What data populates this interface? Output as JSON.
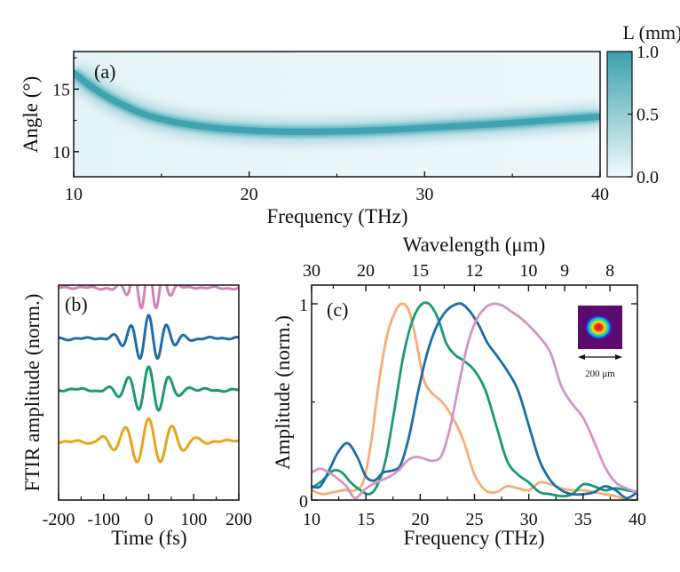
{
  "chart_data": [
    {
      "panel": "(a)",
      "type": "heatmap",
      "xlabel": "Frequency (THz)",
      "ylabel": "Angle (°)",
      "xlim": [
        10,
        40
      ],
      "ylim": [
        8,
        18
      ],
      "xticks": [
        "10",
        "20",
        "30",
        "40"
      ],
      "yticks": [
        "10",
        "15"
      ],
      "yticks_values": [
        10,
        15
      ],
      "xticks_values": [
        10,
        20,
        30,
        40
      ],
      "colorbar": {
        "label": "L (mm)",
        "ticks": [
          "0.0",
          "0.5",
          "1.0"
        ],
        "range": [
          0,
          1
        ],
        "color_low": "#f2fafb",
        "color_high": "#3aa0ad"
      },
      "ridge": {
        "x": [
          10,
          11,
          12,
          13,
          14,
          15,
          16,
          18,
          20,
          22,
          24,
          26,
          28,
          30,
          32,
          34,
          36,
          38,
          40
        ],
        "y": [
          16.3,
          15.2,
          14.3,
          13.6,
          13.0,
          12.6,
          12.3,
          11.9,
          11.7,
          11.6,
          11.6,
          11.65,
          11.75,
          11.9,
          12.05,
          12.2,
          12.4,
          12.6,
          12.8
        ]
      }
    },
    {
      "panel": "(b)",
      "type": "line",
      "xlabel": "Time (fs)",
      "ylabel": "FTIR amplitude (norm.)",
      "xlim": [
        -200,
        200
      ],
      "xticks": [
        "-200",
        "-100",
        "0",
        "100",
        "200"
      ],
      "xticks_values": [
        -200,
        -100,
        0,
        100,
        200
      ],
      "series": [
        {
          "name": "pink",
          "color": "#d183b8",
          "offset": 3,
          "center_freq": 30,
          "width": 32,
          "amp": 0.42
        },
        {
          "name": "blue",
          "color": "#1d6fa5",
          "offset": 2,
          "center_freq": 25,
          "width": 38,
          "amp": 0.42
        },
        {
          "name": "green",
          "color": "#1a9a72",
          "offset": 1,
          "center_freq": 22,
          "width": 42,
          "amp": 0.42
        },
        {
          "name": "yellow",
          "color": "#e6a618",
          "offset": 0,
          "center_freq": 19,
          "width": 55,
          "amp": 0.42
        }
      ]
    },
    {
      "panel": "(c)",
      "type": "line",
      "xlabel": "Frequency (THz)",
      "ylabel": "Amplitude (norm.)",
      "top_xlabel": "Wavelength (μm)",
      "xlim": [
        10,
        40
      ],
      "ylim": [
        0,
        1.03
      ],
      "xticks": [
        "10",
        "15",
        "20",
        "25",
        "30",
        "35",
        "40"
      ],
      "xticks_values": [
        10,
        15,
        20,
        25,
        30,
        35,
        40
      ],
      "yticks": [
        "0",
        "1"
      ],
      "yticks_values": [
        0,
        1
      ],
      "top_xticks": [
        "30",
        "20",
        "15",
        "12",
        "10",
        "9",
        "8"
      ],
      "top_xticks_values": [
        30,
        20,
        15,
        12,
        10,
        9,
        8
      ],
      "inset": {
        "scale_label": "200 μm"
      },
      "series": [
        {
          "name": "orange",
          "color": "#f7ad74",
          "x": [
            10,
            11,
            12,
            13,
            14,
            14.8,
            15.5,
            16.2,
            17,
            17.8,
            18.4,
            19,
            19.6,
            20.3,
            21,
            22,
            23,
            24,
            25,
            26,
            27,
            28,
            29,
            30,
            31,
            32,
            33,
            34,
            35,
            36,
            37,
            38,
            39,
            40
          ],
          "y": [
            0.05,
            0.03,
            0.04,
            0.05,
            0.05,
            0.1,
            0.3,
            0.6,
            0.85,
            0.97,
            1.0,
            0.96,
            0.82,
            0.62,
            0.55,
            0.5,
            0.42,
            0.3,
            0.13,
            0.05,
            0.04,
            0.07,
            0.06,
            0.05,
            0.09,
            0.08,
            0.06,
            0.05,
            0.05,
            0.04,
            0.03,
            0.02,
            0.0,
            0.0
          ]
        },
        {
          "name": "green",
          "color": "#199a70",
          "x": [
            10,
            11,
            12,
            12.8,
            13.6,
            14.5,
            15.3,
            16,
            16.8,
            17.6,
            18.4,
            19.2,
            20,
            20.8,
            21.6,
            22.4,
            23.2,
            24,
            25,
            26,
            27,
            28,
            29,
            30,
            31,
            32,
            33,
            34,
            35,
            36,
            37,
            38,
            39,
            40
          ],
          "y": [
            0.06,
            0.1,
            0.15,
            0.14,
            0.09,
            0.05,
            0.03,
            0.07,
            0.2,
            0.45,
            0.72,
            0.9,
            0.99,
            1.0,
            0.93,
            0.8,
            0.74,
            0.71,
            0.66,
            0.56,
            0.38,
            0.2,
            0.13,
            0.09,
            0.04,
            0.03,
            0.02,
            0.03,
            0.08,
            0.07,
            0.05,
            0.06,
            0.05,
            0.04
          ]
        },
        {
          "name": "blue",
          "color": "#1c6ea6",
          "x": [
            10,
            10.8,
            11.6,
            12.4,
            13.3,
            14.2,
            15,
            15.8,
            16.6,
            17.4,
            18.2,
            19,
            19.8,
            20.6,
            21.4,
            22.2,
            23,
            23.8,
            24.6,
            25.4,
            26.2,
            27,
            28,
            29,
            30,
            31,
            32,
            33,
            34,
            35,
            36,
            37,
            38,
            39,
            40
          ],
          "y": [
            0.07,
            0.07,
            0.15,
            0.24,
            0.29,
            0.22,
            0.12,
            0.1,
            0.14,
            0.15,
            0.18,
            0.33,
            0.55,
            0.74,
            0.87,
            0.95,
            0.99,
            1.0,
            0.96,
            0.89,
            0.8,
            0.74,
            0.66,
            0.56,
            0.38,
            0.2,
            0.1,
            0.05,
            0.03,
            0.03,
            0.04,
            0.07,
            0.05,
            0.01,
            0.04
          ]
        },
        {
          "name": "pink",
          "color": "#d495c4",
          "x": [
            10,
            10.8,
            11.6,
            12.4,
            13.2,
            14,
            14.8,
            15.6,
            16.4,
            17.2,
            18,
            18.8,
            19.6,
            20.4,
            21.2,
            22,
            22.8,
            23.6,
            24.4,
            25.2,
            26,
            26.8,
            27.6,
            28.4,
            29.2,
            30,
            31,
            32,
            33,
            34,
            35,
            36,
            37,
            38,
            39,
            40
          ],
          "y": [
            0.14,
            0.16,
            0.14,
            0.11,
            0.07,
            0.01,
            0.05,
            0.08,
            0.1,
            0.12,
            0.15,
            0.2,
            0.22,
            0.21,
            0.2,
            0.23,
            0.38,
            0.6,
            0.8,
            0.92,
            0.98,
            1.0,
            0.99,
            0.96,
            0.93,
            0.89,
            0.83,
            0.75,
            0.58,
            0.49,
            0.42,
            0.3,
            0.17,
            0.09,
            0.06,
            0.04
          ]
        }
      ]
    }
  ]
}
